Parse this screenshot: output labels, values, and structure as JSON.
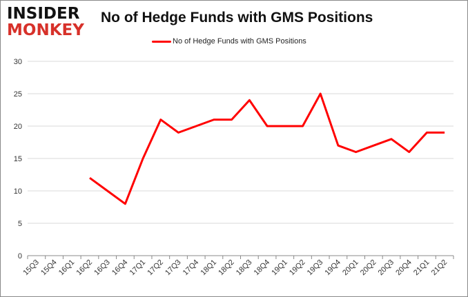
{
  "logo": {
    "line1": "INSIDER",
    "line2": "MONKEY"
  },
  "chart_data": {
    "type": "line",
    "title": "No of Hedge Funds with GMS Positions",
    "xlabel": "",
    "ylabel": "",
    "ylim": [
      0,
      30
    ],
    "yticks": [
      0,
      5,
      10,
      15,
      20,
      25,
      30
    ],
    "grid": true,
    "legend_position": "top",
    "categories": [
      "15Q3",
      "15Q4",
      "16Q1",
      "16Q2",
      "16Q3",
      "16Q4",
      "17Q1",
      "17Q2",
      "17Q3",
      "17Q4",
      "18Q1",
      "18Q2",
      "18Q3",
      "18Q4",
      "19Q1",
      "19Q2",
      "19Q3",
      "19Q4",
      "20Q1",
      "20Q2",
      "20Q3",
      "20Q4",
      "21Q1",
      "21Q2"
    ],
    "series": [
      {
        "name": "No of Hedge Funds with GMS Positions",
        "color": "#ff0000",
        "values": [
          null,
          null,
          null,
          12,
          10,
          8,
          15,
          21,
          19,
          20,
          21,
          21,
          24,
          20,
          20,
          20,
          25,
          17,
          16,
          17,
          18,
          16,
          19,
          19
        ]
      }
    ]
  }
}
